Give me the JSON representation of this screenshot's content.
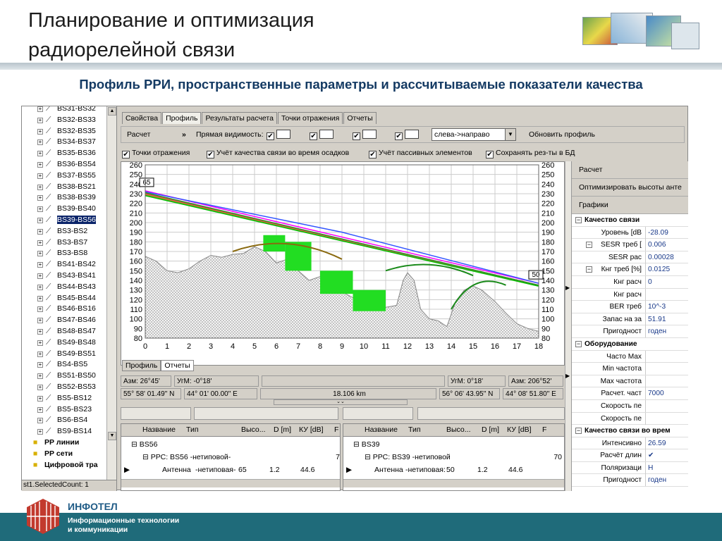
{
  "slide": {
    "title_line1": "Планирование и оптимизация",
    "title_line2": "радиорелейной связи",
    "subtitle": "Профиль РРИ,  пространственные параметры и рассчитываемые показатели качества"
  },
  "tree": {
    "items": [
      {
        "label": "BS31-BS32"
      },
      {
        "label": "BS32-BS33"
      },
      {
        "label": "BS32-BS35"
      },
      {
        "label": "BS34-BS37"
      },
      {
        "label": "BS35-BS36"
      },
      {
        "label": "BS36-BS54"
      },
      {
        "label": "BS37-BS55"
      },
      {
        "label": "BS38-BS21"
      },
      {
        "label": "BS38-BS39"
      },
      {
        "label": "BS39-BS40"
      },
      {
        "label": "BS39-BS56",
        "selected": true
      },
      {
        "label": "BS3-BS2"
      },
      {
        "label": "BS3-BS7"
      },
      {
        "label": "BS3-BS8"
      },
      {
        "label": "BS41-BS42"
      },
      {
        "label": "BS43-BS41"
      },
      {
        "label": "BS44-BS43"
      },
      {
        "label": "BS45-BS44"
      },
      {
        "label": "BS46-BS16"
      },
      {
        "label": "BS47-BS46"
      },
      {
        "label": "BS48-BS47"
      },
      {
        "label": "BS49-BS48"
      },
      {
        "label": "BS49-BS51"
      },
      {
        "label": "BS4-BS5"
      },
      {
        "label": "BS51-BS50"
      },
      {
        "label": "BS52-BS53"
      },
      {
        "label": "BS5-BS12"
      },
      {
        "label": "BS5-BS23"
      },
      {
        "label": "BS6-BS4"
      },
      {
        "label": "BS9-BS14"
      }
    ],
    "folders": [
      {
        "label": "РР линии"
      },
      {
        "label": "РР сети"
      },
      {
        "label": "Цифровой тра"
      }
    ],
    "status": "st1.SelectedCount: 1"
  },
  "tabs": [
    "Свойства",
    "Профиль",
    "Результаты расчета",
    "Точки отражения",
    "Отчеты"
  ],
  "toolbar": {
    "calc": "Расчет",
    "more": "»",
    "los_label": "Прямая видимость:",
    "direction": "слева->направо",
    "refresh": "Обновить профиль"
  },
  "options": [
    {
      "label": "Точки отражения",
      "checked": true
    },
    {
      "label": "Учёт качества связи во время осадков",
      "checked": true
    },
    {
      "label": "Учёт пассивных элементов",
      "checked": true
    },
    {
      "label": "Сохранять рез-ты в БД",
      "checked": true
    }
  ],
  "chart_data": {
    "type": "line",
    "xlim": [
      0,
      18
    ],
    "ylim": [
      80,
      260
    ],
    "x_ticks": [
      0,
      1,
      2,
      3,
      4,
      5,
      6,
      7,
      8,
      9,
      10,
      11,
      12,
      13,
      14,
      15,
      16,
      17,
      18
    ],
    "y_ticks": [
      80,
      90,
      100,
      110,
      120,
      130,
      140,
      150,
      160,
      170,
      180,
      190,
      200,
      210,
      220,
      230,
      240,
      250,
      260
    ],
    "grid": true,
    "left_marker": "65",
    "right_marker": "50",
    "terrain": [
      [
        0,
        165
      ],
      [
        0.5,
        160
      ],
      [
        1,
        150
      ],
      [
        1.5,
        148
      ],
      [
        2,
        152
      ],
      [
        2.5,
        160
      ],
      [
        3,
        166
      ],
      [
        3.5,
        164
      ],
      [
        4,
        167
      ],
      [
        4.5,
        168
      ],
      [
        5,
        175
      ],
      [
        5.5,
        170
      ],
      [
        6,
        158
      ],
      [
        6.5,
        162
      ],
      [
        7,
        150
      ],
      [
        7.5,
        140
      ],
      [
        8,
        144
      ],
      [
        8.5,
        136
      ],
      [
        9,
        128
      ],
      [
        9.5,
        122
      ],
      [
        10,
        118
      ],
      [
        10.5,
        115
      ],
      [
        11,
        112
      ],
      [
        11.5,
        114
      ],
      [
        11.8,
        140
      ],
      [
        12,
        148
      ],
      [
        12.3,
        140
      ],
      [
        12.6,
        110
      ],
      [
        13,
        100
      ],
      [
        13.4,
        98
      ],
      [
        13.8,
        92
      ],
      [
        14.2,
        118
      ],
      [
        14.6,
        130
      ],
      [
        15,
        134
      ],
      [
        15.4,
        130
      ],
      [
        16,
        118
      ],
      [
        16.5,
        106
      ],
      [
        17,
        95
      ],
      [
        17.5,
        90
      ],
      [
        18,
        87
      ]
    ],
    "series": [
      {
        "color": "#ff00ff",
        "points": [
          [
            0,
            233
          ],
          [
            18,
            137
          ]
        ]
      },
      {
        "color": "#3355ff",
        "points": [
          [
            0,
            232
          ],
          [
            9,
            190
          ],
          [
            18,
            137
          ]
        ]
      },
      {
        "color": "#ff4444",
        "points": [
          [
            0,
            230
          ],
          [
            18,
            135
          ]
        ]
      },
      {
        "color": "#2a8a2a",
        "points": [
          [
            0,
            231
          ],
          [
            18,
            135
          ]
        ]
      },
      {
        "color": "#9c8a30",
        "points": [
          [
            0,
            229
          ],
          [
            18,
            134
          ]
        ]
      },
      {
        "color": "#00c000",
        "points": [
          [
            0,
            228
          ],
          [
            18,
            134
          ]
        ]
      }
    ],
    "rain_cells": [
      [
        5.4,
        170,
        6.4,
        187
      ],
      [
        6.4,
        150,
        7.6,
        180
      ],
      [
        8,
        126,
        9.5,
        150
      ],
      [
        9.5,
        108,
        11.0,
        130
      ]
    ]
  },
  "subtabs": [
    "Профиль",
    "Отчеты"
  ],
  "info": {
    "az_left": "Азм: 26°45'",
    "angle_left": "УгМ: -0°18'",
    "angle_right": "УгМ: 0°18'",
    "az_right": "Азм: 206°52'",
    "lat_left": "55° 58' 01.49\" N",
    "lon_left": "44° 01' 00.00\" E",
    "distance": "18.106 km",
    "lat_right": "56° 06' 43.95\" N",
    "lon_right": "44° 08' 51.80\" E"
  },
  "grid_headers": [
    "Название",
    "Тип",
    "Высо...",
    "D [m]",
    "КУ [dB]",
    "F"
  ],
  "grid_left": {
    "node": "BS56",
    "rrs": "РРС: BS56",
    "rrs_type": "-нетиповой-",
    "rrs_val": "7",
    "antenna": "Антенна",
    "ant_type": "-нетиповая-",
    "height": "65",
    "d": "1.2",
    "ku": "44.6"
  },
  "grid_right": {
    "node": "BS39",
    "rrs": "РРС: BS39",
    "rrs_type": "-нетиповой",
    "rrs_val": "70",
    "antenna": "Антенна",
    "ant_type": "-нетиповая:",
    "height": "50",
    "d": "1.2",
    "ku": "44.6"
  },
  "side": {
    "buttons": [
      "Расчет",
      "Оптимизировать высоты анте",
      "Графики"
    ],
    "groups": [
      {
        "title": "Качество связи",
        "rows": [
          {
            "k": "Уровень [dB",
            "v": "-28.09"
          },
          {
            "k": "SESR треб [",
            "v": "0.006",
            "tog": "−"
          },
          {
            "k": "SESR рас",
            "v": "0.00028"
          },
          {
            "k": "Кнг треб [%]",
            "v": "0.0125",
            "tog": "−"
          },
          {
            "k": "Кнг расч",
            "v": "0"
          },
          {
            "k": "Кнг расч",
            "v": ""
          },
          {
            "k": "BER треб",
            "v": "10^-3"
          },
          {
            "k": "Запас на за",
            "v": "51.91"
          },
          {
            "k": "Пригодност",
            "v": "годен"
          }
        ]
      },
      {
        "title": "Оборудование",
        "rows": [
          {
            "k": "Часто Max",
            "v": ""
          },
          {
            "k": "Min частота",
            "v": ""
          },
          {
            "k": "Max частота",
            "v": ""
          },
          {
            "k": "Расчет. част",
            "v": "7000"
          },
          {
            "k": "Скорость пе",
            "v": ""
          },
          {
            "k": "Скорость пе",
            "v": ""
          }
        ]
      },
      {
        "title": "Качество связи во врем",
        "rows": [
          {
            "k": "Интенсивно",
            "v": "26.59"
          },
          {
            "k": "Расчёт длин",
            "v": "✔"
          },
          {
            "k": "Поляризаци",
            "v": "H"
          },
          {
            "k": "Пригодност",
            "v": "годен"
          }
        ]
      }
    ]
  },
  "brand": {
    "name": "ИНФОТЕЛ",
    "tag1": "Информационные технологии",
    "tag2": "и коммуникации"
  }
}
